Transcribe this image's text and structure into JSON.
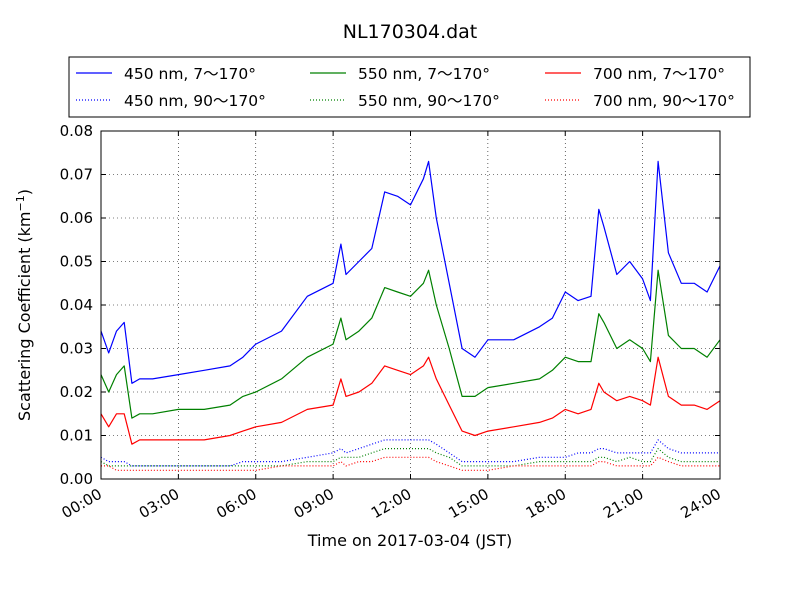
{
  "chart_data": {
    "type": "line",
    "title": "NL170304.dat",
    "xlabel": "Time on 2017-03-04 (JST)",
    "ylabel": "Scattering Coefficient (km",
    "ylabel_sup": "−1",
    "ylabel_tail": ")",
    "xlim": [
      0,
      24
    ],
    "ylim": [
      0,
      0.08
    ],
    "grid": true,
    "legend_position": "top",
    "x_ticks": [
      {
        "value": 0,
        "label": "00:00"
      },
      {
        "value": 3,
        "label": "03:00"
      },
      {
        "value": 6,
        "label": "06:00"
      },
      {
        "value": 9,
        "label": "09:00"
      },
      {
        "value": 12,
        "label": "12:00"
      },
      {
        "value": 15,
        "label": "15:00"
      },
      {
        "value": 18,
        "label": "18:00"
      },
      {
        "value": 21,
        "label": "21:00"
      },
      {
        "value": 24,
        "label": "24:00"
      }
    ],
    "y_ticks": [
      {
        "value": 0,
        "label": "0.00"
      },
      {
        "value": 0.01,
        "label": "0.01"
      },
      {
        "value": 0.02,
        "label": "0.02"
      },
      {
        "value": 0.03,
        "label": "0.03"
      },
      {
        "value": 0.04,
        "label": "0.04"
      },
      {
        "value": 0.05,
        "label": "0.05"
      },
      {
        "value": 0.06,
        "label": "0.06"
      },
      {
        "value": 0.07,
        "label": "0.07"
      },
      {
        "value": 0.08,
        "label": "0.08"
      }
    ],
    "x": [
      0,
      0.3,
      0.6,
      0.9,
      1.2,
      1.5,
      2.0,
      3.0,
      4.0,
      5.0,
      5.5,
      6.0,
      7.0,
      8.0,
      9.0,
      9.3,
      9.5,
      10.0,
      10.5,
      11.0,
      11.5,
      12.0,
      12.5,
      12.7,
      13.0,
      13.5,
      14.0,
      14.5,
      15.0,
      16.0,
      17.0,
      17.5,
      18.0,
      18.5,
      19.0,
      19.3,
      19.5,
      20.0,
      20.5,
      21.0,
      21.3,
      21.6,
      22.0,
      22.5,
      23.0,
      23.5,
      24.0
    ],
    "series": [
      {
        "name": "450 nm, 7～170°",
        "color": "#0000ff",
        "style": "solid",
        "values": [
          0.034,
          0.029,
          0.034,
          0.036,
          0.022,
          0.023,
          0.023,
          0.024,
          0.025,
          0.026,
          0.028,
          0.031,
          0.034,
          0.042,
          0.045,
          0.054,
          0.047,
          0.05,
          0.053,
          0.066,
          0.065,
          0.063,
          0.069,
          0.073,
          0.06,
          0.045,
          0.03,
          0.028,
          0.032,
          0.032,
          0.035,
          0.037,
          0.043,
          0.041,
          0.042,
          0.062,
          0.058,
          0.047,
          0.05,
          0.046,
          0.041,
          0.073,
          0.052,
          0.045,
          0.045,
          0.043,
          0.049
        ]
      },
      {
        "name": "450 nm, 90～170°",
        "color": "#0000ff",
        "style": "dotted",
        "values": [
          0.005,
          0.004,
          0.004,
          0.004,
          0.003,
          0.003,
          0.003,
          0.003,
          0.003,
          0.003,
          0.004,
          0.004,
          0.004,
          0.005,
          0.006,
          0.007,
          0.006,
          0.007,
          0.008,
          0.009,
          0.009,
          0.009,
          0.009,
          0.009,
          0.008,
          0.006,
          0.004,
          0.004,
          0.004,
          0.004,
          0.005,
          0.005,
          0.005,
          0.006,
          0.006,
          0.007,
          0.007,
          0.006,
          0.006,
          0.006,
          0.006,
          0.009,
          0.007,
          0.006,
          0.006,
          0.006,
          0.006
        ]
      },
      {
        "name": "550 nm, 7～170°",
        "color": "#008000",
        "style": "solid",
        "values": [
          0.024,
          0.02,
          0.024,
          0.026,
          0.014,
          0.015,
          0.015,
          0.016,
          0.016,
          0.017,
          0.019,
          0.02,
          0.023,
          0.028,
          0.031,
          0.037,
          0.032,
          0.034,
          0.037,
          0.044,
          0.043,
          0.042,
          0.045,
          0.048,
          0.04,
          0.03,
          0.019,
          0.019,
          0.021,
          0.022,
          0.023,
          0.025,
          0.028,
          0.027,
          0.027,
          0.038,
          0.036,
          0.03,
          0.032,
          0.03,
          0.027,
          0.048,
          0.033,
          0.03,
          0.03,
          0.028,
          0.032
        ]
      },
      {
        "name": "550 nm, 90～170°",
        "color": "#008000",
        "style": "dotted",
        "values": [
          0.004,
          0.003,
          0.003,
          0.003,
          0.003,
          0.003,
          0.003,
          0.003,
          0.003,
          0.003,
          0.003,
          0.003,
          0.003,
          0.004,
          0.004,
          0.005,
          0.005,
          0.005,
          0.006,
          0.007,
          0.007,
          0.007,
          0.007,
          0.007,
          0.006,
          0.005,
          0.003,
          0.003,
          0.003,
          0.003,
          0.004,
          0.004,
          0.004,
          0.004,
          0.004,
          0.005,
          0.005,
          0.004,
          0.005,
          0.004,
          0.004,
          0.007,
          0.005,
          0.004,
          0.004,
          0.004,
          0.004
        ]
      },
      {
        "name": "700 nm, 7～170°",
        "color": "#ff0000",
        "style": "solid",
        "values": [
          0.015,
          0.012,
          0.015,
          0.015,
          0.008,
          0.009,
          0.009,
          0.009,
          0.009,
          0.01,
          0.011,
          0.012,
          0.013,
          0.016,
          0.017,
          0.023,
          0.019,
          0.02,
          0.022,
          0.026,
          0.025,
          0.024,
          0.026,
          0.028,
          0.023,
          0.017,
          0.011,
          0.01,
          0.011,
          0.012,
          0.013,
          0.014,
          0.016,
          0.015,
          0.016,
          0.022,
          0.02,
          0.018,
          0.019,
          0.018,
          0.017,
          0.028,
          0.019,
          0.017,
          0.017,
          0.016,
          0.018
        ]
      },
      {
        "name": "700 nm, 90～170°",
        "color": "#ff0000",
        "style": "dotted",
        "values": [
          0.003,
          0.003,
          0.002,
          0.002,
          0.002,
          0.002,
          0.002,
          0.002,
          0.002,
          0.002,
          0.002,
          0.002,
          0.003,
          0.003,
          0.003,
          0.004,
          0.003,
          0.004,
          0.004,
          0.005,
          0.005,
          0.005,
          0.005,
          0.005,
          0.004,
          0.003,
          0.002,
          0.002,
          0.002,
          0.003,
          0.003,
          0.003,
          0.003,
          0.003,
          0.003,
          0.004,
          0.004,
          0.003,
          0.003,
          0.003,
          0.003,
          0.005,
          0.004,
          0.003,
          0.003,
          0.003,
          0.003
        ]
      }
    ]
  }
}
